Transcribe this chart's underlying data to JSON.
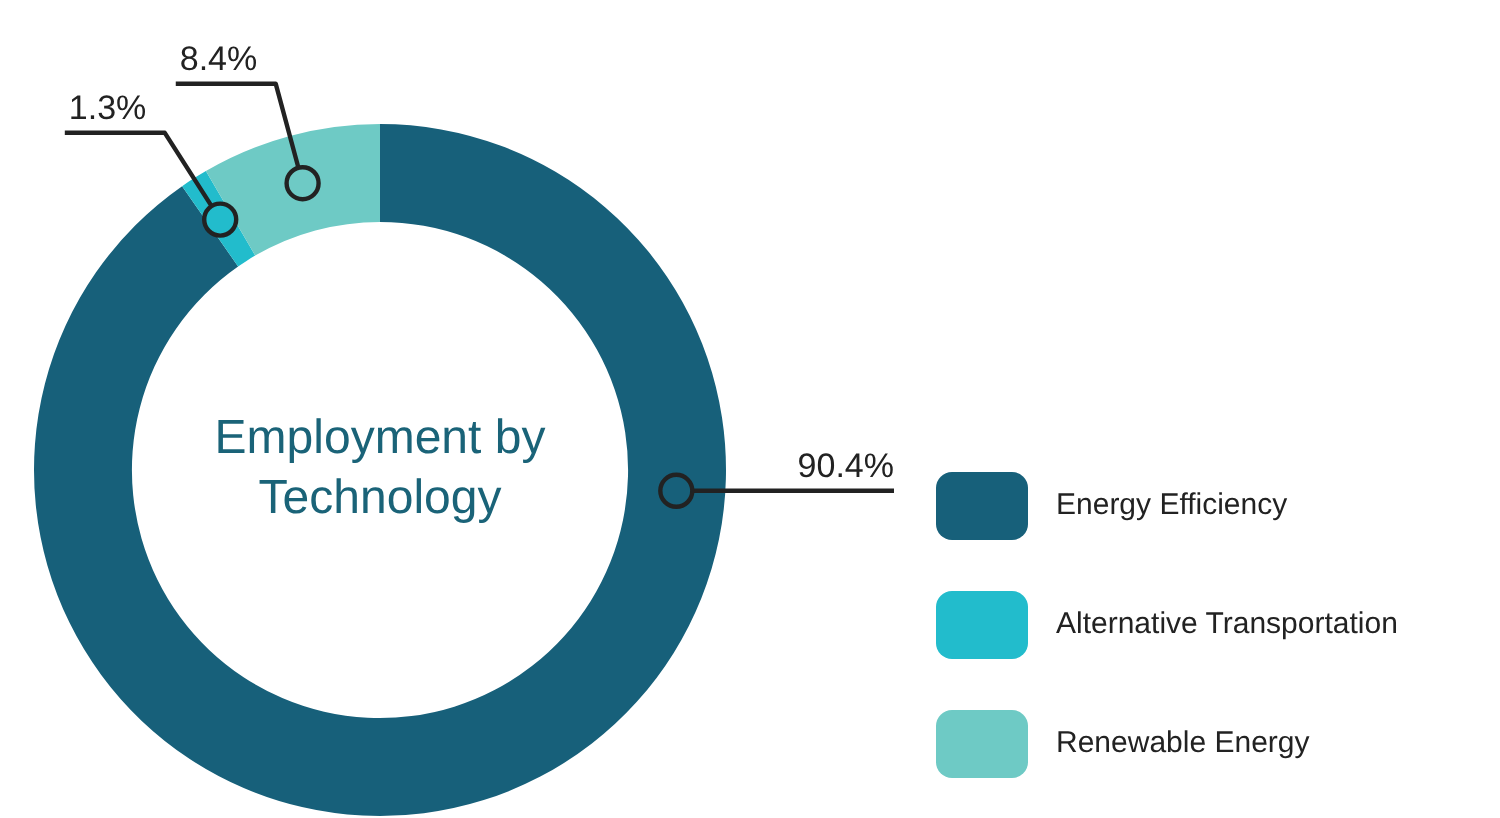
{
  "chart_data": {
    "type": "donut",
    "title": "Employment by Technology",
    "categories": [
      "Energy Efficiency",
      "Alternative Transportation",
      "Renewable Energy"
    ],
    "values": [
      90.4,
      1.3,
      8.4
    ],
    "colors": [
      "#17607a",
      "#22bccc",
      "#6ecac5"
    ],
    "value_labels": [
      "90.4%",
      "1.3%",
      "8.4%"
    ],
    "legend": "right"
  }
}
